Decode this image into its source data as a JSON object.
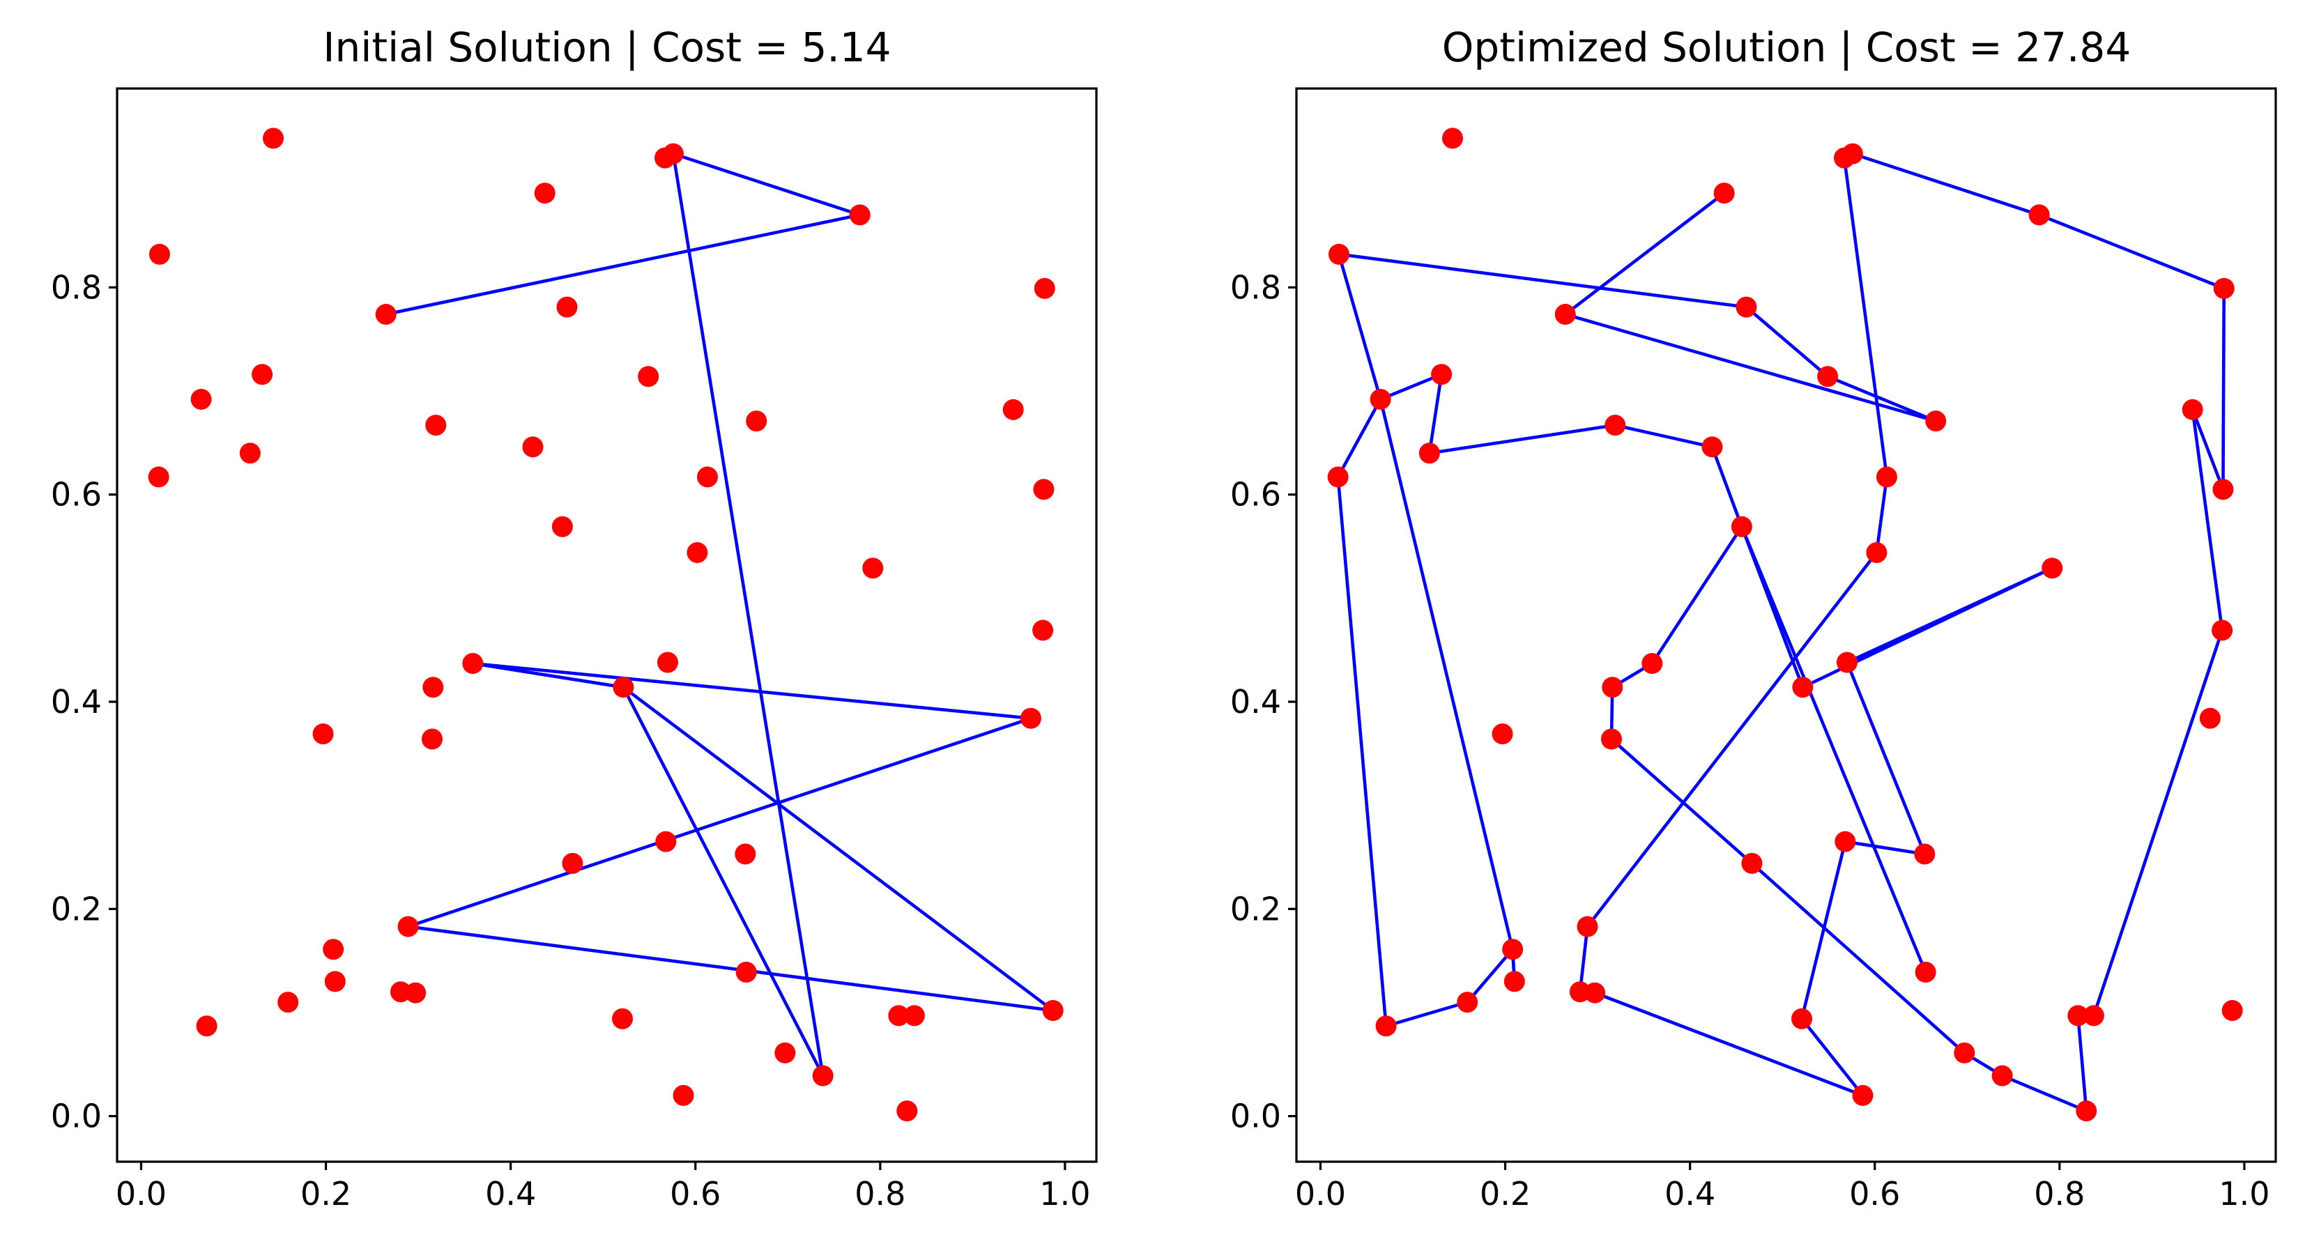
{
  "chart_data": [
    {
      "type": "scatter",
      "title": "Initial Solution | Cost = 5.14",
      "xlabel": "",
      "ylabel": "",
      "xlim": [
        -0.026,
        1.034
      ],
      "ylim": [
        -0.044,
        0.992
      ],
      "xticks": [
        "0.0",
        "0.2",
        "0.4",
        "0.6",
        "0.8",
        "1.0"
      ],
      "yticks": [
        "0.0",
        "0.2",
        "0.4",
        "0.6",
        "0.8"
      ],
      "grid": false,
      "colors": {
        "points": "#ff0000",
        "route": "#0000ff"
      },
      "points": [
        [
          0.143,
          0.944
        ],
        [
          0.576,
          0.929
        ],
        [
          0.567,
          0.925
        ],
        [
          0.437,
          0.891
        ],
        [
          0.778,
          0.87
        ],
        [
          0.02,
          0.832
        ],
        [
          0.978,
          0.799
        ],
        [
          0.461,
          0.781
        ],
        [
          0.265,
          0.774
        ],
        [
          0.131,
          0.716
        ],
        [
          0.549,
          0.714
        ],
        [
          0.065,
          0.692
        ],
        [
          0.944,
          0.682
        ],
        [
          0.666,
          0.671
        ],
        [
          0.319,
          0.667
        ],
        [
          0.424,
          0.646
        ],
        [
          0.118,
          0.64
        ],
        [
          0.019,
          0.617
        ],
        [
          0.613,
          0.617
        ],
        [
          0.977,
          0.605
        ],
        [
          0.456,
          0.569
        ],
        [
          0.602,
          0.544
        ],
        [
          0.792,
          0.529
        ],
        [
          0.976,
          0.469
        ],
        [
          0.57,
          0.438
        ],
        [
          0.359,
          0.437
        ],
        [
          0.316,
          0.414
        ],
        [
          0.522,
          0.414
        ],
        [
          0.963,
          0.384
        ],
        [
          0.197,
          0.369
        ],
        [
          0.315,
          0.364
        ],
        [
          0.568,
          0.265
        ],
        [
          0.654,
          0.253
        ],
        [
          0.467,
          0.244
        ],
        [
          0.289,
          0.183
        ],
        [
          0.208,
          0.161
        ],
        [
          0.655,
          0.139
        ],
        [
          0.21,
          0.13
        ],
        [
          0.159,
          0.11
        ],
        [
          0.281,
          0.12
        ],
        [
          0.297,
          0.119
        ],
        [
          0.987,
          0.102
        ],
        [
          0.82,
          0.097
        ],
        [
          0.837,
          0.097
        ],
        [
          0.521,
          0.094
        ],
        [
          0.071,
          0.087
        ],
        [
          0.697,
          0.061
        ],
        [
          0.738,
          0.039
        ],
        [
          0.587,
          0.02
        ],
        [
          0.829,
          0.005
        ]
      ],
      "route": [
        [
          0.265,
          0.774
        ],
        [
          0.778,
          0.87
        ],
        [
          0.576,
          0.929
        ],
        [
          0.738,
          0.039
        ],
        [
          0.522,
          0.414
        ],
        [
          0.359,
          0.437
        ],
        [
          0.963,
          0.384
        ],
        [
          0.289,
          0.183
        ],
        [
          0.987,
          0.102
        ],
        [
          0.522,
          0.414
        ]
      ]
    },
    {
      "type": "scatter",
      "title": "Optimized Solution | Cost = 27.84",
      "xlabel": "",
      "ylabel": "",
      "xlim": [
        -0.026,
        1.034
      ],
      "ylim": [
        -0.044,
        0.992
      ],
      "xticks": [
        "0.0",
        "0.2",
        "0.4",
        "0.6",
        "0.8",
        "1.0"
      ],
      "yticks": [
        "0.0",
        "0.2",
        "0.4",
        "0.6",
        "0.8"
      ],
      "grid": false,
      "colors": {
        "points": "#ff0000",
        "route": "#0000ff"
      },
      "points": [
        [
          0.143,
          0.944
        ],
        [
          0.576,
          0.929
        ],
        [
          0.567,
          0.925
        ],
        [
          0.437,
          0.891
        ],
        [
          0.778,
          0.87
        ],
        [
          0.02,
          0.832
        ],
        [
          0.978,
          0.799
        ],
        [
          0.461,
          0.781
        ],
        [
          0.265,
          0.774
        ],
        [
          0.131,
          0.716
        ],
        [
          0.549,
          0.714
        ],
        [
          0.065,
          0.692
        ],
        [
          0.944,
          0.682
        ],
        [
          0.666,
          0.671
        ],
        [
          0.319,
          0.667
        ],
        [
          0.424,
          0.646
        ],
        [
          0.118,
          0.64
        ],
        [
          0.019,
          0.617
        ],
        [
          0.613,
          0.617
        ],
        [
          0.977,
          0.605
        ],
        [
          0.456,
          0.569
        ],
        [
          0.602,
          0.544
        ],
        [
          0.792,
          0.529
        ],
        [
          0.976,
          0.469
        ],
        [
          0.57,
          0.438
        ],
        [
          0.359,
          0.437
        ],
        [
          0.316,
          0.414
        ],
        [
          0.522,
          0.414
        ],
        [
          0.963,
          0.384
        ],
        [
          0.197,
          0.369
        ],
        [
          0.315,
          0.364
        ],
        [
          0.568,
          0.265
        ],
        [
          0.654,
          0.253
        ],
        [
          0.467,
          0.244
        ],
        [
          0.289,
          0.183
        ],
        [
          0.208,
          0.161
        ],
        [
          0.655,
          0.139
        ],
        [
          0.21,
          0.13
        ],
        [
          0.159,
          0.11
        ],
        [
          0.281,
          0.12
        ],
        [
          0.297,
          0.119
        ],
        [
          0.987,
          0.102
        ],
        [
          0.82,
          0.097
        ],
        [
          0.837,
          0.097
        ],
        [
          0.521,
          0.094
        ],
        [
          0.071,
          0.087
        ],
        [
          0.697,
          0.061
        ],
        [
          0.738,
          0.039
        ],
        [
          0.587,
          0.02
        ],
        [
          0.829,
          0.005
        ]
      ],
      "route": [
        [
          0.437,
          0.891
        ],
        [
          0.265,
          0.774
        ],
        [
          0.666,
          0.671
        ],
        [
          0.549,
          0.714
        ],
        [
          0.461,
          0.781
        ],
        [
          0.02,
          0.832
        ],
        [
          0.065,
          0.692
        ],
        [
          0.131,
          0.716
        ],
        [
          0.118,
          0.64
        ],
        [
          0.319,
          0.667
        ],
        [
          0.424,
          0.646
        ],
        [
          0.456,
          0.569
        ],
        [
          0.359,
          0.437
        ],
        [
          0.316,
          0.414
        ],
        [
          0.315,
          0.364
        ],
        [
          0.467,
          0.244
        ],
        [
          0.697,
          0.061
        ],
        [
          0.738,
          0.039
        ],
        [
          0.829,
          0.005
        ],
        [
          0.82,
          0.097
        ],
        [
          0.837,
          0.097
        ],
        [
          0.976,
          0.469
        ],
        [
          0.944,
          0.682
        ],
        [
          0.977,
          0.605
        ],
        [
          0.978,
          0.799
        ],
        [
          0.778,
          0.87
        ],
        [
          0.576,
          0.929
        ],
        [
          0.567,
          0.925
        ],
        [
          0.613,
          0.617
        ],
        [
          0.602,
          0.544
        ],
        [
          0.289,
          0.183
        ],
        [
          0.281,
          0.12
        ],
        [
          0.297,
          0.119
        ],
        [
          0.587,
          0.02
        ],
        [
          0.521,
          0.094
        ],
        [
          0.568,
          0.265
        ],
        [
          0.654,
          0.253
        ],
        [
          0.57,
          0.438
        ],
        [
          0.792,
          0.529
        ],
        [
          0.522,
          0.414
        ],
        [
          0.456,
          0.569
        ],
        [
          0.655,
          0.139
        ]
      ],
      "route2": [
        [
          0.065,
          0.692
        ],
        [
          0.019,
          0.617
        ],
        [
          0.071,
          0.087
        ],
        [
          0.159,
          0.11
        ],
        [
          0.208,
          0.161
        ],
        [
          0.21,
          0.13
        ],
        [
          0.208,
          0.161
        ],
        [
          0.065,
          0.692
        ]
      ]
    }
  ]
}
